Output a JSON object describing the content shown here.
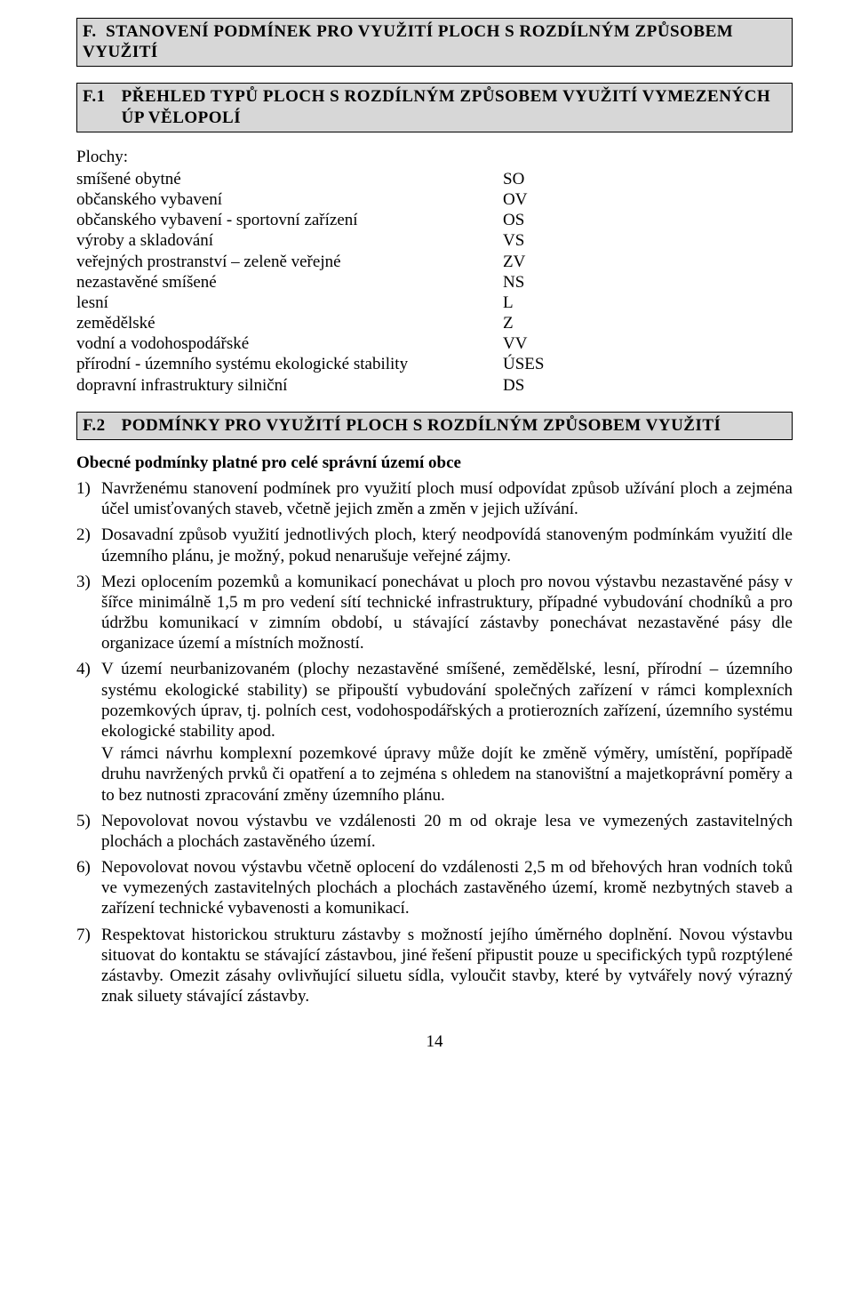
{
  "section_f": {
    "code": "F.",
    "title": "STANOVENÍ PODMÍNEK PRO VYUŽITÍ PLOCH S  ROZDÍLNÝM ZPŮSOBEM VYUŽITÍ"
  },
  "section_f1": {
    "code": "F.1",
    "title": "PŘEHLED TYPŮ PLOCH S ROZDÍLNÝM ZPŮSOBEM VYUŽITÍ VYMEZENÝCH ÚP VĚLOPOLÍ"
  },
  "plochy_label": "Plochy:",
  "land_types": [
    {
      "name": "smíšené obytné",
      "code": "SO"
    },
    {
      "name": "občanského vybavení",
      "code": "OV"
    },
    {
      "name": "občanského vybavení - sportovní zařízení",
      "code": "OS"
    },
    {
      "name": "výroby a skladování",
      "code": "VS"
    },
    {
      "name": "veřejných prostranství – zeleně veřejné",
      "code": "ZV"
    },
    {
      "name": "nezastavěné smíšené",
      "code": "NS"
    },
    {
      "name": "lesní",
      "code": "L"
    },
    {
      "name": "zemědělské",
      "code": "Z"
    },
    {
      "name": "vodní a vodohospodářské",
      "code": "VV"
    },
    {
      "name": "přírodní - územního systému ekologické stability",
      "code": "ÚSES"
    },
    {
      "name": "dopravní infrastruktury silniční",
      "code": "DS"
    }
  ],
  "section_f2": {
    "code": "F.2",
    "title": "PODMÍNKY PRO VYUŽITÍ PLOCH S  ROZDÍLNÝM ZPŮSOBEM VYUŽITÍ"
  },
  "general_heading": "Obecné podmínky platné pro celé správní území obce",
  "items": [
    {
      "num": "1)",
      "text": "Navrženému stanovení podmínek pro využití ploch musí odpovídat způsob užívání ploch a zejména účel umisťovaných staveb, včetně jejich změn a změn v jejich užívání."
    },
    {
      "num": "2)",
      "text": "Dosavadní způsob využití jednotlivých ploch, který neodpovídá stanoveným podmínkám využití dle územního plánu, je možný, pokud nenarušuje veřejné zájmy."
    },
    {
      "num": "3)",
      "text": "Mezi oplocením pozemků a komunikací ponechávat u ploch pro novou výstavbu nezastavěné pásy v šířce minimálně 1,5 m pro vedení sítí technické infrastruktury, případné vybudování chodníků a pro údržbu komunikací v zimním období, u stávající zástavby ponechávat nezastavěné pásy dle organizace území a místních možností."
    },
    {
      "num": "4)",
      "text": "V území neurbanizovaném (plochy nezastavěné smíšené, zemědělské, lesní, přírodní – územního systému ekologické stability) se připouští vybudování společných zařízení v rámci komplexních pozemkových úprav, tj. polních cest, vodohospodářských a protierozních zařízení, územního systému ekologické stability apod.",
      "inner": "V rámci návrhu komplexní pozemkové úpravy může dojít ke změně výměry, umístění, popřípadě druhu navržených prvků či opatření a to zejména s ohledem na stanovištní a majetkoprávní poměry a to bez nutnosti zpracování změny územního plánu."
    },
    {
      "num": "5)",
      "text": "Nepovolovat novou výstavbu ve vzdálenosti 20 m od okraje lesa ve vymezených zastavitelných plochách a plochách zastavěného území."
    },
    {
      "num": "6)",
      "text": "Nepovolovat novou výstavbu včetně oplocení do vzdálenosti 2,5 m od břehových hran vodních toků ve vymezených zastavitelných plochách a plochách zastavěného území, kromě nezbytných staveb a zařízení technické vybavenosti a komunikací."
    },
    {
      "num": "7)",
      "text": "Respektovat historickou strukturu zástavby s možností jejího úměrného doplnění. Novou výstavbu situovat do kontaktu se stávající zástavbou, jiné řešení připustit pouze u specifických typů rozptýlené zástavby. Omezit zásahy ovlivňující siluetu sídla, vyloučit stavby, které by vytvářely nový výrazný znak siluety stávající zástavby."
    }
  ],
  "page_number": "14"
}
